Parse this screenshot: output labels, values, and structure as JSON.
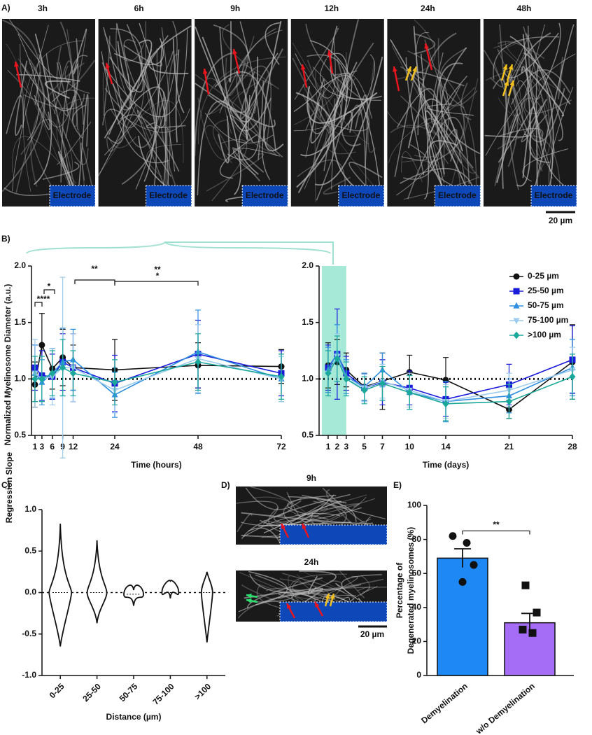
{
  "images": {
    "panel_a": {
      "label": "A)",
      "times": [
        "3h",
        "6h",
        "9h",
        "12h",
        "24h",
        "48h"
      ],
      "electrode": "Electrode",
      "scale_bar": "20 µm"
    },
    "panel_d": {
      "label": "D)",
      "times": [
        "9h",
        "24h"
      ],
      "scale_bar": "20 µm"
    }
  },
  "chart_data": [
    {
      "type": "line",
      "panel_label": "B)",
      "y_label": "Normalized Myelinosome Diameter (a.u.)",
      "x_label": "Time (hours)",
      "x": [
        1,
        3,
        6,
        9,
        12,
        24,
        48,
        72
      ],
      "xlim": [
        0,
        72
      ],
      "xticks": [
        1,
        3,
        6,
        9,
        12,
        24,
        48,
        72
      ],
      "ylim": [
        0.5,
        2.0
      ],
      "yticks": [
        0.5,
        {
          "value": 1.0,
          "label": "1.0"
        },
        1.5,
        {
          "value": 2.0,
          "label": "2.0"
        }
      ],
      "reference_line": 1,
      "legend": "right",
      "annotations": [
        "****",
        "*",
        "**",
        "**",
        "*"
      ],
      "annotation_colors": [
        "#111111",
        "#111111",
        "#2f6fe0",
        "#2f6fe0",
        "#1a1adb"
      ],
      "series": [
        {
          "name": "0-25 µm",
          "color": "#111111",
          "marker": "circle",
          "values": [
            0.95,
            1.3,
            1.09,
            1.19,
            1.1,
            1.08,
            1.12,
            1.11
          ],
          "errors": [
            0.2,
            0.28,
            0.18,
            0.25,
            0.2,
            0.27,
            0.2,
            0.15
          ]
        },
        {
          "name": "25-50 µm",
          "color": "#1a1adb",
          "marker": "square",
          "values": [
            1.1,
            1.03,
            1.02,
            1.15,
            1.1,
            0.96,
            1.22,
            1.05
          ],
          "errors": [
            0.2,
            0.22,
            0.2,
            0.25,
            0.3,
            0.25,
            0.3,
            0.2
          ]
        },
        {
          "name": "50-75 µm",
          "color": "#2f8fe0",
          "marker": "triangle",
          "values": [
            1.05,
            0.97,
            1.05,
            1.15,
            1.17,
            0.86,
            1.24,
            1.0
          ],
          "errors": [
            0.25,
            0.2,
            0.22,
            0.3,
            0.27,
            0.2,
            0.37,
            0.2
          ]
        },
        {
          "name": "75-100 µm",
          "color": "#9ccbee",
          "marker": "triangle-down",
          "values": [
            1.05,
            1.0,
            1.02,
            1.1,
            1.1,
            0.9,
            1.18,
            1.0
          ],
          "errors": [
            0.3,
            0.2,
            0.25,
            0.8,
            0.3,
            0.2,
            0.3,
            0.2
          ]
        },
        {
          "name": ">100 µm",
          "color": "#1aa89a",
          "marker": "diamond",
          "values": [
            1.0,
            1.0,
            1.05,
            1.1,
            1.05,
            0.97,
            1.15,
            1.02
          ],
          "errors": [
            0.2,
            0.2,
            0.2,
            0.25,
            0.2,
            0.2,
            0.25,
            0.2
          ]
        }
      ]
    },
    {
      "type": "line",
      "x_label": "Time (days)",
      "x": [
        1,
        2,
        3,
        5,
        7,
        10,
        14,
        21,
        28
      ],
      "xlim": [
        0,
        28
      ],
      "xticks": [
        1,
        2,
        3,
        5,
        7,
        10,
        14,
        21,
        28
      ],
      "ylim": [
        0.5,
        2.0
      ],
      "yticks": [
        0.5,
        {
          "value": 1.0,
          "label": "1.0"
        },
        1.5,
        {
          "value": 2.0,
          "label": "2.0"
        }
      ],
      "reference_line": 1,
      "highlight_xlim": [
        0.3,
        3
      ],
      "highlight_color": "#8fe3cc",
      "series": [
        {
          "color": "#111111",
          "marker": "circle",
          "values": [
            1.12,
            1.15,
            1.08,
            0.93,
            0.98,
            1.06,
            0.99,
            0.73,
            1.15
          ],
          "errors": [
            0.2,
            0.2,
            0.15,
            0.12,
            0.25,
            0.15,
            0.2,
            0.08,
            0.33
          ]
        },
        {
          "color": "#1a1adb",
          "marker": "square",
          "values": [
            1.1,
            1.22,
            1.05,
            0.92,
            0.97,
            0.92,
            0.82,
            0.95,
            1.17
          ],
          "errors": [
            0.2,
            0.4,
            0.15,
            0.12,
            0.2,
            0.15,
            0.15,
            0.18,
            0.3
          ]
        },
        {
          "color": "#2f8fe0",
          "marker": "triangle",
          "values": [
            1.08,
            1.23,
            1.02,
            0.93,
            1.08,
            0.88,
            0.8,
            0.85,
            1.1
          ],
          "errors": [
            0.2,
            0.25,
            0.15,
            0.12,
            0.15,
            0.15,
            0.18,
            0.15,
            0.25
          ]
        },
        {
          "color": "#9ccbee",
          "marker": "triangle-down",
          "values": [
            1.05,
            1.2,
            1.0,
            0.92,
            0.98,
            0.9,
            0.8,
            0.9,
            1.08
          ],
          "errors": [
            0.2,
            0.2,
            0.15,
            0.12,
            0.15,
            0.15,
            0.15,
            0.15,
            0.2
          ]
        },
        {
          "color": "#1aa89a",
          "marker": "diamond",
          "values": [
            1.05,
            1.18,
            1.0,
            0.9,
            0.96,
            0.88,
            0.78,
            0.8,
            1.02
          ],
          "errors": [
            0.2,
            0.2,
            0.15,
            0.12,
            0.15,
            0.15,
            0.15,
            0.15,
            0.2
          ]
        }
      ]
    },
    {
      "type": "violin",
      "panel_label": "C)",
      "y_label": "Regression Slope",
      "x_label": "Distance (µm)",
      "categories": [
        "0-25",
        "25-50",
        "50-75",
        "75-100",
        ">100"
      ],
      "min": [
        -0.65,
        -0.37,
        -0.16,
        -0.07,
        -0.6
      ],
      "max": [
        0.83,
        0.63,
        0.03,
        0.14,
        0.25
      ],
      "median": [
        0,
        0,
        -0.02,
        0,
        0
      ],
      "ylim": [
        -1.0,
        1.0
      ],
      "yticks": [
        {
          "value": -1.0,
          "label": "-1.0"
        },
        -0.5,
        {
          "value": 0,
          "label": "0.0"
        },
        0.5,
        {
          "value": 1.0,
          "label": "1.0"
        }
      ],
      "reference_line": 0
    },
    {
      "type": "bar",
      "panel_label": "E)",
      "y_label": [
        "Percentage of",
        "Degenerated myelinosomes (%)"
      ],
      "categories": [
        "Demyelination",
        "w/o Demyelination"
      ],
      "values": [
        69,
        31
      ],
      "errors": [
        5.5,
        5.5
      ],
      "colors": [
        "#1e88f5",
        "#a56cf5"
      ],
      "points": [
        [
          82,
          78,
          65,
          55
        ],
        [
          53,
          37,
          27,
          25
        ]
      ],
      "point_markers": [
        "circle",
        "square"
      ],
      "ylim": [
        0,
        100
      ],
      "yticks": [
        0,
        20,
        40,
        60,
        80,
        100
      ],
      "annotation": "**"
    }
  ]
}
